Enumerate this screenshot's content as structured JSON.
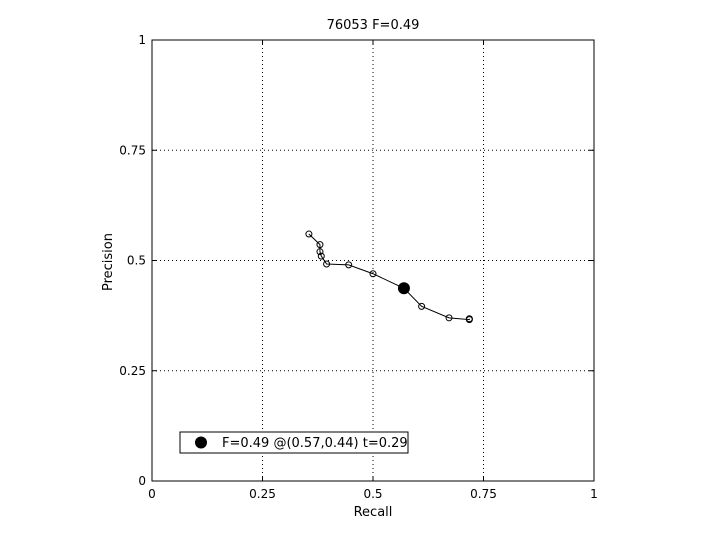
{
  "chart_data": {
    "type": "line",
    "title": "76053 F=0.49",
    "xlabel": "Recall",
    "ylabel": "Precision",
    "xlim": [
      0,
      1
    ],
    "ylim": [
      0,
      1
    ],
    "xticks": [
      0,
      0.25,
      0.5,
      0.75,
      1
    ],
    "yticks": [
      0,
      0.25,
      0.5,
      0.75,
      1
    ],
    "xtick_labels": [
      "0",
      "0.25",
      "0.5",
      "0.75",
      "1"
    ],
    "ytick_labels": [
      "0",
      "0.25",
      "0.5",
      "0.75",
      "1"
    ],
    "grid": true,
    "grid_style": "dotted",
    "series": [
      {
        "x": [
          0.355,
          0.38,
          0.38,
          0.383,
          0.395,
          0.445,
          0.5,
          0.57,
          0.61,
          0.672,
          0.718,
          0.718
        ],
        "y": [
          0.56,
          0.536,
          0.52,
          0.51,
          0.492,
          0.49,
          0.47,
          0.437,
          0.396,
          0.37,
          0.366,
          0.368
        ],
        "color": "#000000",
        "marker": "circle-open"
      }
    ],
    "best_point": {
      "x": 0.57,
      "y": 0.437,
      "color": "#000000"
    },
    "legend": {
      "placement": "bottom-left",
      "entries": [
        {
          "label": "F=0.49 @(0.57,0.44) t=0.29",
          "marker": "filled-circle"
        }
      ]
    }
  }
}
